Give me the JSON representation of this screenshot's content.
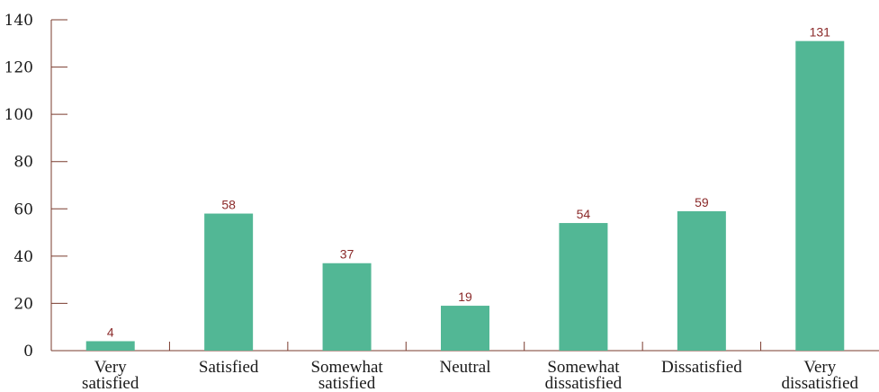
{
  "chart_data": {
    "type": "bar",
    "title": "",
    "xlabel": "",
    "ylabel": "",
    "categories": [
      [
        "Very",
        "satisfied"
      ],
      [
        "Satisfied"
      ],
      [
        "Somewhat",
        "satisfied"
      ],
      [
        "Neutral"
      ],
      [
        "Somewhat",
        "dissatisfied"
      ],
      [
        "Dissatisfied"
      ],
      [
        "Very",
        "dissatisfied"
      ]
    ],
    "values": [
      4,
      58,
      37,
      19,
      54,
      59,
      131
    ],
    "ylim": [
      0,
      140
    ],
    "yticks": [
      0,
      20,
      40,
      60,
      80,
      100,
      120,
      140
    ],
    "ytick_labels": [
      "0",
      "20",
      "40",
      "60",
      "80",
      "100",
      "120",
      "140"
    ],
    "value_labels": [
      "4",
      "58",
      "37",
      "19",
      "54",
      "59",
      "131"
    ],
    "grid": false,
    "legend": "none",
    "colors": {
      "bar": "#52b795",
      "axis": "#7a3b2e",
      "data_label": "#8b2a2a"
    }
  }
}
